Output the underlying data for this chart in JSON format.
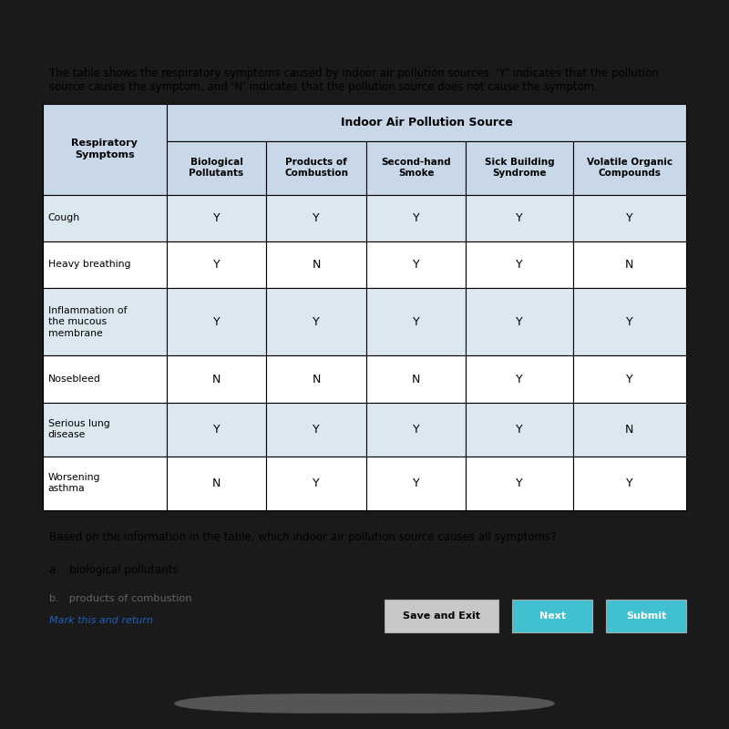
{
  "bg_outer": "#1a1a1a",
  "bg_panel": "#e8e0d0",
  "intro_text": "The table shows the respiratory symptoms caused by indoor air pollution sources. ‘Y’ indicates that the pollution\nsource causes the symptom, and ‘N’ indicates that the pollution source does not cause the symptom.",
  "table_header_top": "Indoor Air Pollution Source",
  "col0_header_line1": "Respiratory",
  "col0_header_line2": "Symptoms",
  "columns": [
    {
      "line1": "Biological",
      "line2": "Pollutants"
    },
    {
      "line1": "Products of",
      "line2": "Combustion"
    },
    {
      "line1": "Second-hand",
      "line2": "Smoke"
    },
    {
      "line1": "Sick Building",
      "line2": "Syndrome"
    },
    {
      "line1": "Volatile Organic",
      "line2": "Compounds"
    }
  ],
  "rows": [
    {
      "symptom_line1": "Cough",
      "symptom_line2": "",
      "values": [
        "Y",
        "Y",
        "Y",
        "Y",
        "Y"
      ]
    },
    {
      "symptom_line1": "Heavy breathing",
      "symptom_line2": "",
      "values": [
        "Y",
        "N",
        "Y",
        "Y",
        "N"
      ]
    },
    {
      "symptom_line1": "Inflammation of",
      "symptom_line2": "the mucous\nmembrane",
      "values": [
        "Y",
        "Y",
        "Y",
        "Y",
        "Y"
      ]
    },
    {
      "symptom_line1": "Nosebleed",
      "symptom_line2": "",
      "values": [
        "N",
        "N",
        "N",
        "Y",
        "Y"
      ]
    },
    {
      "symptom_line1": "Serious lung",
      "symptom_line2": "disease",
      "values": [
        "Y",
        "Y",
        "Y",
        "Y",
        "N"
      ]
    },
    {
      "symptom_line1": "Worsening",
      "symptom_line2": "asthma",
      "values": [
        "N",
        "Y",
        "Y",
        "Y",
        "Y"
      ]
    }
  ],
  "question_text": "Based on the information in the table, which indoor air pollution source causes all symptoms?",
  "answer_a": "a.   biological pollutants",
  "answer_b": "b.   products of combustion",
  "header_bg": "#c8d8e8",
  "row_bg_even": "#dce8f0",
  "row_bg_odd": "#ffffff",
  "btn_save_color": "#c8c8c8",
  "btn_next_color": "#40c0d0",
  "btn_submit_color": "#40c0d0",
  "link_color": "#2060c0"
}
